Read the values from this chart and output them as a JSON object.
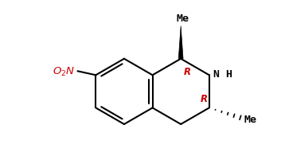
{
  "background_color": "#ffffff",
  "figsize": [
    3.53,
    2.07
  ],
  "dpi": 100,
  "bond_color": "#000000",
  "text_color_black": "#000000",
  "text_color_red": "#cc0000",
  "bond_lw": 1.5,
  "xlim": [
    -3.2,
    4.2
  ],
  "ylim": [
    -2.2,
    2.8
  ],
  "bl": 1.0
}
